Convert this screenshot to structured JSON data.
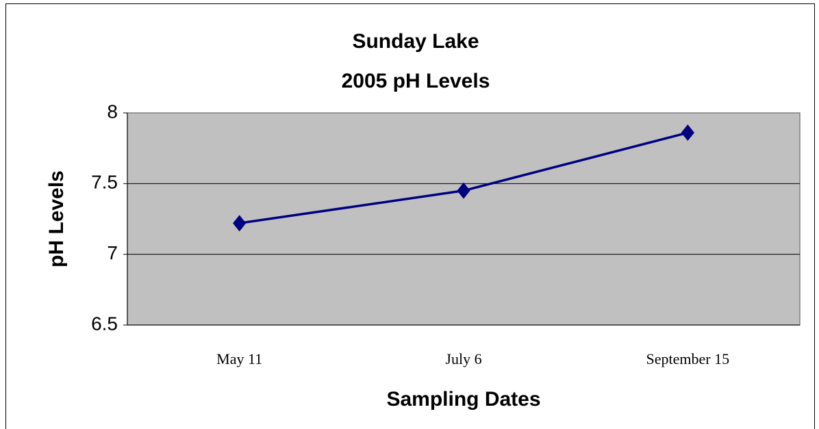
{
  "chart_data": {
    "type": "line",
    "title": "Sunday Lake",
    "subtitle": "2005 pH Levels",
    "x_label": "Sampling Dates",
    "y_label": "pH Levels",
    "categories": [
      "May 11",
      "July 6",
      "September 15"
    ],
    "series": [
      {
        "name": "pH",
        "color": "#000080",
        "values": [
          7.22,
          7.45,
          7.86
        ]
      }
    ],
    "ylim": [
      6.5,
      8
    ],
    "yticks": [
      6.5,
      7,
      7.5,
      8
    ],
    "grid": true,
    "plot_background": "#c0c0c0"
  }
}
